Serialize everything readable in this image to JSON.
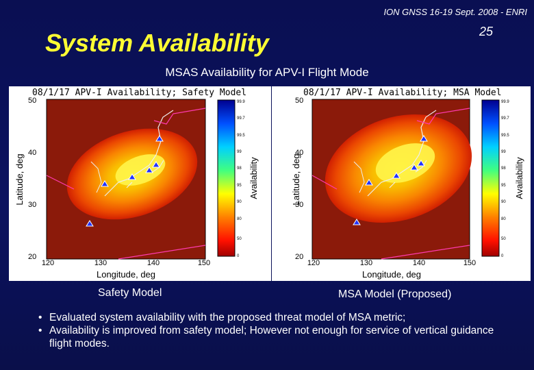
{
  "header": {
    "conference": "ION GNSS 16-19 Sept. 2008 - ENRI",
    "page_number": "25",
    "title": "System Availability",
    "subtitle": "MSAS Availability for APV-I Flight Mode"
  },
  "figures": [
    {
      "plot_title": "08/1/17 APV-I Availability; Safety Model",
      "caption": "Safety Model",
      "xlabel": "Longitude, deg",
      "ylabel": "Latitude, deg",
      "colorbar_label": "Availability",
      "x_ticks": [
        "120",
        "130",
        "140",
        "150"
      ],
      "y_ticks": [
        "20",
        "30",
        "40",
        "50"
      ],
      "colorbar_ticks": [
        "99.9",
        "99.7",
        "99.5",
        "99",
        "98",
        "95",
        "90",
        "80",
        "50",
        "0"
      ]
    },
    {
      "plot_title": "08/1/17 APV-I Availability; MSA Model",
      "caption": "MSA Model (Proposed)",
      "xlabel": "Longitude, deg",
      "ylabel": "Latitude, deg",
      "colorbar_label": "Availability",
      "x_ticks": [
        "120",
        "130",
        "140",
        "150"
      ],
      "y_ticks": [
        "20",
        "30",
        "40",
        "50"
      ],
      "colorbar_ticks": [
        "99.9",
        "99.7",
        "99.5",
        "99",
        "98",
        "95",
        "90",
        "80",
        "50",
        "0"
      ]
    }
  ],
  "bullets": [
    "Evaluated system availability with the proposed threat model of MSA metric;",
    "Availability is improved from safety model; However not enough for service of vertical guidance flight modes."
  ],
  "colors": {
    "background": "#0b1260",
    "title": "#ffff33",
    "text": "#ffffff"
  }
}
